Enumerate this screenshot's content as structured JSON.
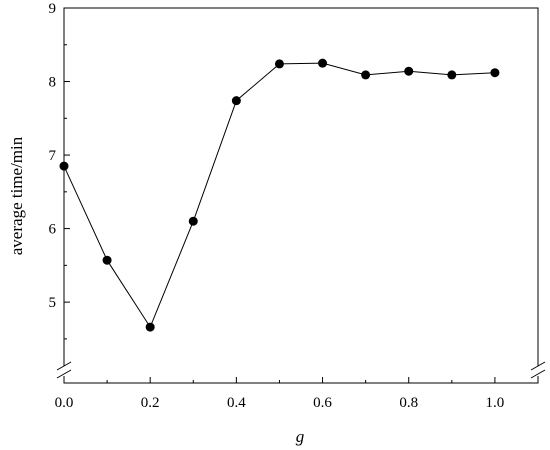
{
  "chart_data": {
    "type": "line",
    "title": "",
    "xlabel": "g",
    "ylabel": "average time/min",
    "x": [
      0.0,
      0.1,
      0.2,
      0.3,
      0.4,
      0.5,
      0.6,
      0.7,
      0.8,
      0.9,
      1.0
    ],
    "series": [
      {
        "values": [
          6.85,
          5.57,
          4.66,
          6.1,
          7.74,
          8.24,
          8.25,
          8.09,
          8.14,
          8.09,
          8.12
        ]
      }
    ],
    "xlim": [
      0.0,
      1.1
    ],
    "ylim": [
      3.9,
      9.0
    ],
    "y_axis_break": true,
    "x_ticks": [
      0.0,
      0.2,
      0.4,
      0.6,
      0.8,
      1.0
    ],
    "x_tick_labels": [
      "0.0",
      "0.2",
      "0.4",
      "0.6",
      "0.8",
      "1.0"
    ],
    "y_ticks": [
      5,
      6,
      7,
      8,
      9
    ],
    "y_tick_labels": [
      "5",
      "6",
      "7",
      "8",
      "9"
    ],
    "grid": false,
    "legend": "none",
    "marker": "filled-circle",
    "line_color": "#000000",
    "marker_color": "#000000"
  }
}
